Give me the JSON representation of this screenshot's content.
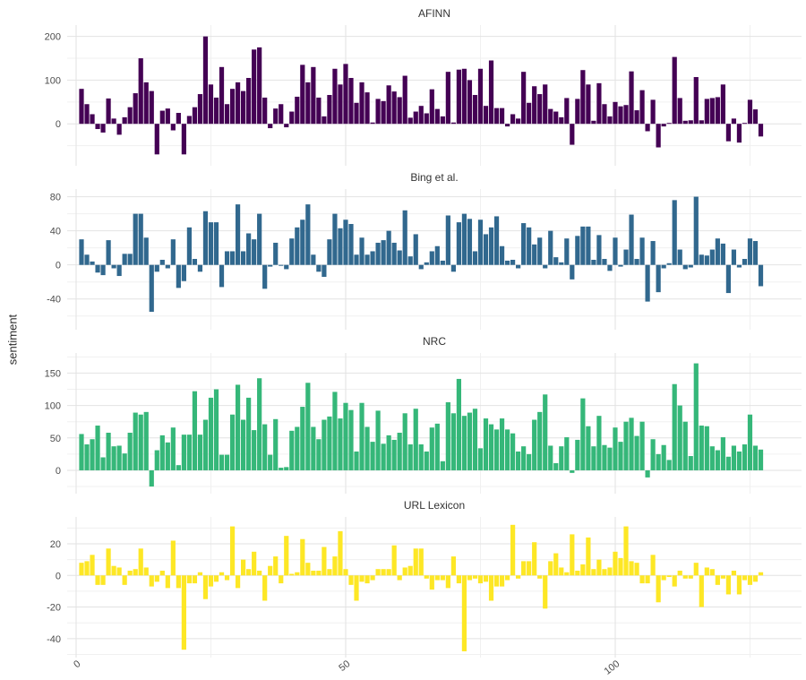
{
  "figure": {
    "ylab": "sentiment",
    "background": "#ffffff",
    "grid_major_color": "#e2e2e2",
    "grid_minor_color": "#f0f0f0",
    "axis_text_color": "#4d4d4d",
    "strip_text_color": "#333333"
  },
  "x_axis": {
    "ticks": [
      0,
      50,
      100
    ],
    "minor_ticks": [
      25,
      75,
      125
    ]
  },
  "chart_data": [
    {
      "type": "bar",
      "title": "AFINN",
      "color": "#440154",
      "ylim": [
        -96,
        226
      ],
      "yticks_major": [
        0,
        100,
        200
      ],
      "yticks_minor": [
        -50,
        50,
        150
      ],
      "xlabel": "",
      "ylabel": "sentiment",
      "values": [
        80,
        45,
        22,
        -12,
        -20,
        58,
        12,
        -25,
        15,
        38,
        70,
        150,
        95,
        75,
        -70,
        30,
        35,
        -15,
        25,
        -70,
        18,
        38,
        68,
        200,
        90,
        60,
        130,
        45,
        80,
        95,
        75,
        105,
        170,
        175,
        60,
        -10,
        35,
        45,
        -8,
        28,
        62,
        135,
        95,
        130,
        60,
        17,
        66,
        126,
        90,
        137,
        105,
        48,
        95,
        72,
        3,
        57,
        52,
        88,
        74,
        61,
        110,
        14,
        28,
        41,
        24,
        79,
        34,
        17,
        119,
        3,
        124,
        126,
        100,
        66,
        126,
        41,
        145,
        36,
        36,
        -6,
        22,
        12,
        119,
        48,
        86,
        68,
        90,
        34,
        28,
        15,
        59,
        -48,
        57,
        123,
        90,
        7,
        93,
        45,
        17,
        50,
        40,
        43,
        120,
        31,
        77,
        -17,
        55,
        -54,
        -6,
        2,
        153,
        59,
        7,
        8,
        107,
        8,
        57,
        59,
        61,
        90,
        -40,
        12,
        -43,
        2,
        55,
        33,
        -29
      ]
    },
    {
      "type": "bar",
      "title": "Bing et al.",
      "color": "#31688e",
      "ylim": [
        -76,
        89
      ],
      "yticks_major": [
        -40,
        0,
        40,
        80
      ],
      "yticks_minor": [
        -60,
        -20,
        20,
        60
      ],
      "xlabel": "",
      "ylabel": "sentiment",
      "values": [
        30,
        12,
        4,
        -9,
        -12,
        29,
        -4,
        -13,
        13,
        13,
        60,
        60,
        32,
        -55,
        -8,
        6,
        -4,
        30,
        -27,
        -19,
        44,
        7,
        -8,
        63,
        50,
        50,
        -26,
        16,
        16,
        71,
        16,
        37,
        30,
        60,
        -28,
        -2,
        26,
        -1,
        -5,
        31,
        44,
        53,
        71,
        12,
        -8,
        -14,
        30,
        60,
        43,
        53,
        48,
        12,
        32,
        12,
        16,
        26,
        29,
        40,
        26,
        17,
        64,
        10,
        36,
        -5,
        3,
        16,
        22,
        5,
        58,
        -8,
        50,
        60,
        54,
        16,
        53,
        36,
        44,
        57,
        22,
        5,
        6,
        -4,
        49,
        44,
        24,
        32,
        -4,
        40,
        9,
        3,
        31,
        -17,
        34,
        45,
        45,
        6,
        35,
        7,
        -7,
        32,
        -2,
        18,
        59,
        7,
        32,
        -43,
        28,
        -32,
        -4,
        2,
        76,
        18,
        -5,
        -3,
        80,
        12,
        11,
        18,
        31,
        25,
        -33,
        18,
        -3,
        7,
        31,
        28,
        -25
      ]
    },
    {
      "type": "bar",
      "title": "NRC",
      "color": "#35b779",
      "ylim": [
        -36,
        181
      ],
      "yticks_major": [
        0,
        50,
        100,
        150
      ],
      "yticks_minor": [
        -25,
        25,
        75,
        125,
        175
      ],
      "xlabel": "",
      "ylabel": "sentiment",
      "values": [
        56,
        40,
        48,
        69,
        20,
        58,
        37,
        38,
        26,
        58,
        89,
        86,
        90,
        -25,
        31,
        54,
        43,
        66,
        8,
        55,
        55,
        122,
        55,
        78,
        112,
        125,
        24,
        24,
        86,
        132,
        78,
        112,
        62,
        142,
        71,
        24,
        79,
        4,
        5,
        61,
        67,
        98,
        135,
        67,
        48,
        78,
        83,
        121,
        80,
        104,
        93,
        29,
        104,
        67,
        44,
        92,
        41,
        54,
        47,
        58,
        88,
        40,
        95,
        40,
        29,
        66,
        72,
        14,
        105,
        88,
        141,
        84,
        89,
        95,
        34,
        80,
        71,
        63,
        80,
        63,
        57,
        29,
        37,
        25,
        78,
        90,
        117,
        38,
        11,
        37,
        51,
        -4,
        47,
        111,
        68,
        37,
        84,
        39,
        35,
        66,
        44,
        75,
        81,
        53,
        75,
        -11,
        48,
        25,
        39,
        16,
        133,
        100,
        75,
        22,
        165,
        69,
        68,
        37,
        31,
        51,
        21,
        38,
        29,
        40,
        86,
        38,
        32
      ]
    },
    {
      "type": "bar",
      "title": "URL Lexicon",
      "color": "#fde725",
      "ylim": [
        -52,
        37
      ],
      "yticks_major": [
        -40,
        -20,
        0,
        20
      ],
      "yticks_minor": [
        -50,
        -30,
        -10,
        10,
        30
      ],
      "xlabel": "",
      "ylabel": "sentiment",
      "values": [
        8,
        9,
        13,
        -6,
        -6,
        17,
        6,
        5,
        -6,
        3,
        4,
        17,
        5,
        -7,
        -4,
        3,
        -8,
        22,
        -8,
        -47,
        -5,
        -5,
        2,
        -15,
        -7,
        -4,
        2,
        -3,
        31,
        -8,
        10,
        4,
        15,
        3,
        -16,
        6,
        12,
        -5,
        25,
        1,
        2,
        23,
        8,
        3,
        3,
        18,
        4,
        12,
        28,
        4,
        -6,
        -16,
        -4,
        -5,
        -3,
        4,
        4,
        4,
        19,
        -3,
        5,
        6,
        17,
        17,
        -2,
        -9,
        -3,
        -3,
        -8,
        12,
        -5,
        -48,
        -3,
        -2,
        -5,
        -4,
        -16,
        -7,
        -7,
        -3,
        32,
        -2,
        9,
        9,
        21,
        -2,
        -21,
        9,
        14,
        5,
        2,
        26,
        3,
        7,
        24,
        4,
        10,
        4,
        5,
        15,
        11,
        31,
        9,
        8,
        -5,
        -5,
        13,
        -17,
        -3,
        -1,
        -7,
        3,
        -2,
        -2,
        8,
        -20,
        5,
        4,
        -6,
        -2,
        -12,
        3,
        -12,
        -3,
        -6,
        -4,
        2
      ]
    }
  ]
}
